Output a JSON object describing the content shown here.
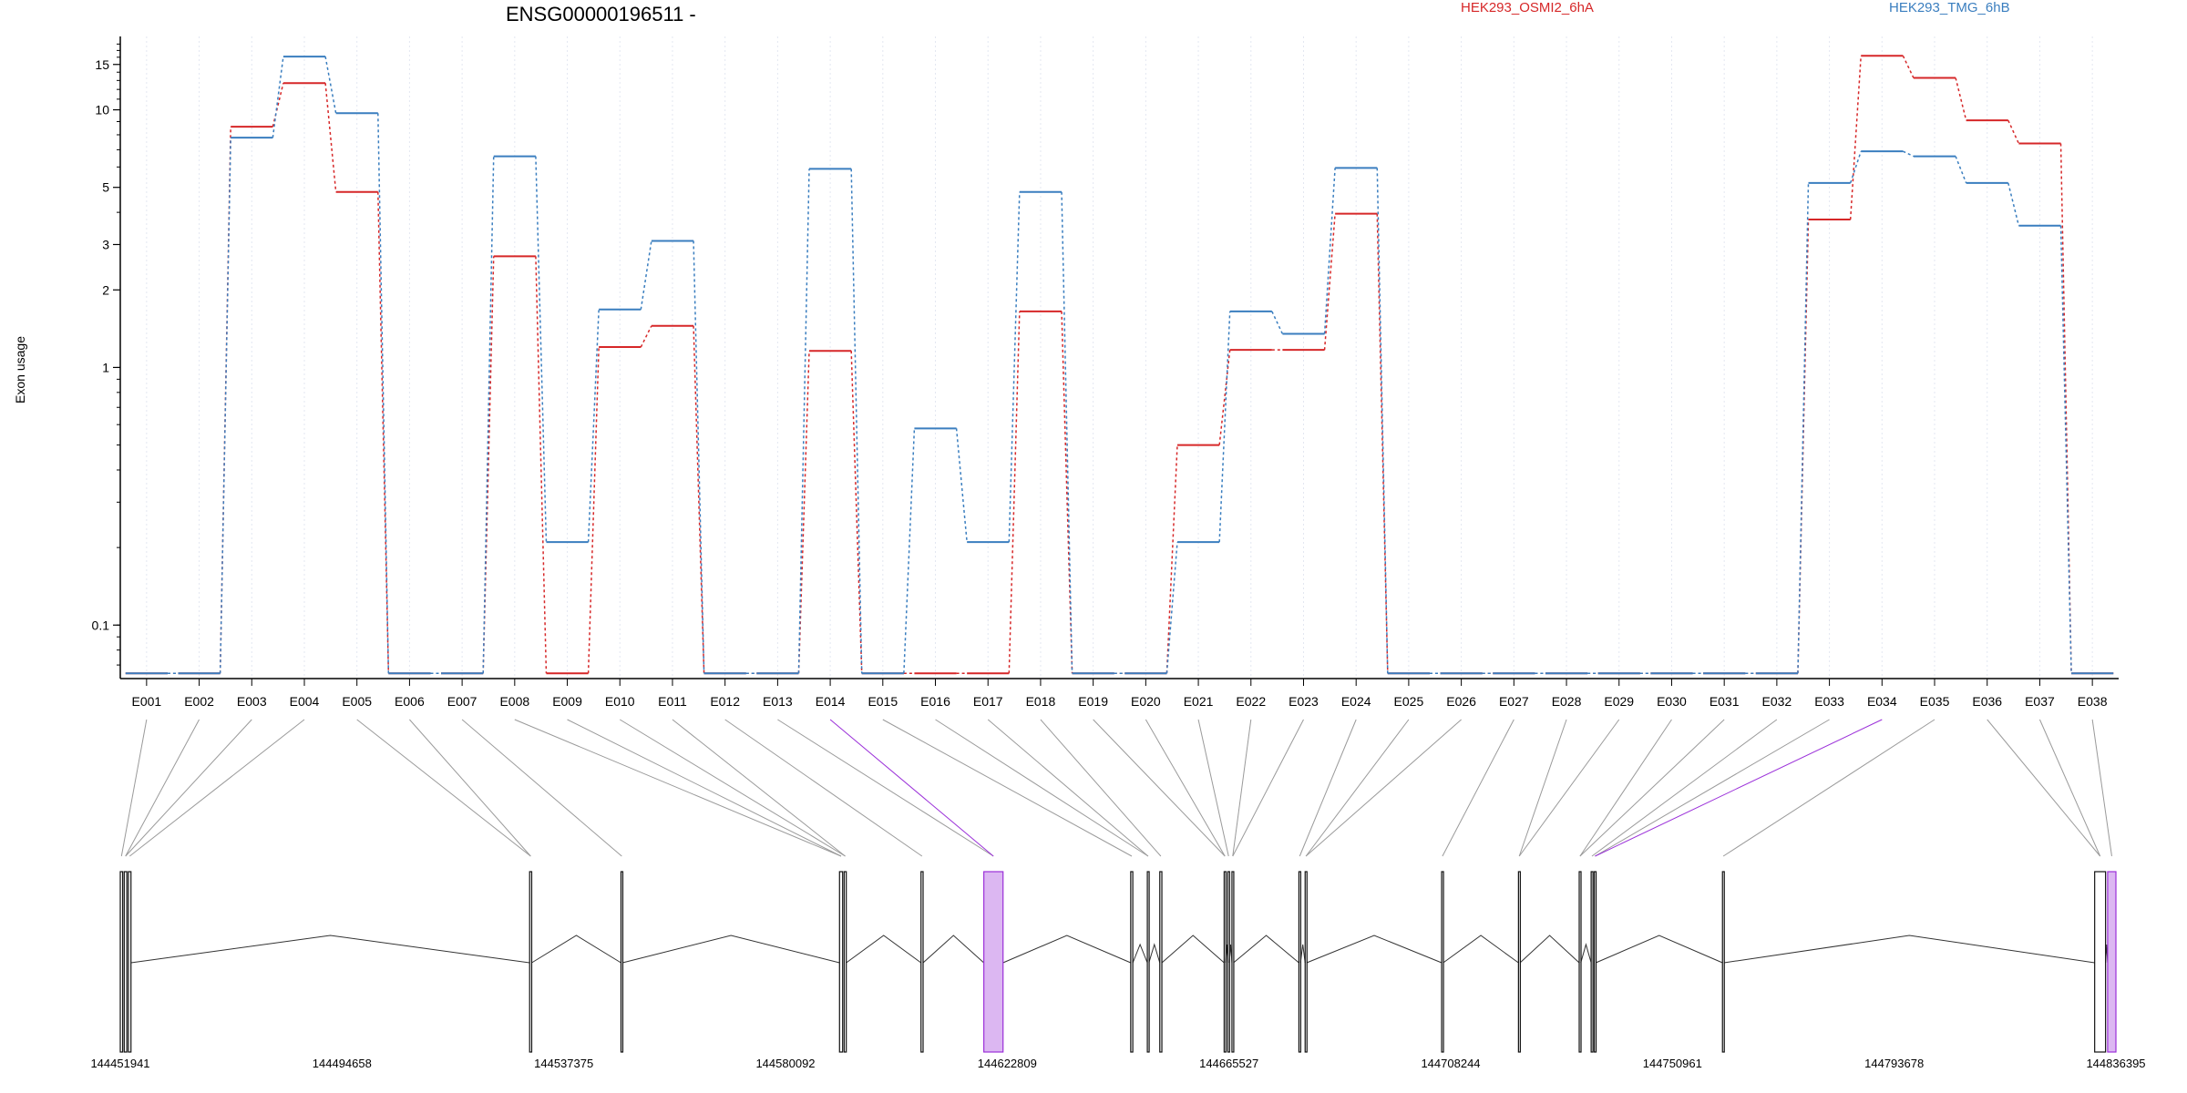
{
  "colors": {
    "series_red": "#d62728",
    "series_blue": "#3a7ebf",
    "highlight": "#9b30d9",
    "axis": "#000000",
    "grid": "#e3e7f1",
    "connector": "#9a9a9a"
  },
  "chart_data": {
    "type": "line",
    "title": "ENSG00000196511 -",
    "ylabel": "Exon usage",
    "xlabel": "",
    "y_scale": "log",
    "y_ticks": [
      0.1,
      1,
      2,
      3,
      5,
      10,
      15
    ],
    "y_tick_labels": [
      "0.1",
      "1",
      "2",
      "3",
      "5",
      "10",
      "15"
    ],
    "ylim": [
      0.062,
      18.5
    ],
    "grid": "vertical dotted",
    "legend_placement": "top",
    "categories": [
      "E001",
      "E002",
      "E003",
      "E004",
      "E005",
      "E006",
      "E007",
      "E008",
      "E009",
      "E010",
      "E011",
      "E012",
      "E013",
      "E014",
      "E015",
      "E016",
      "E017",
      "E018",
      "E019",
      "E020",
      "E021",
      "E022",
      "E023",
      "E024",
      "E025",
      "E026",
      "E027",
      "E028",
      "E029",
      "E030",
      "E031",
      "E032",
      "E033",
      "E034",
      "E035",
      "E036",
      "E037",
      "E038"
    ],
    "series": [
      {
        "name": "HEK293_OSMI2_6hA",
        "color": "#d62728",
        "values": [
          0.065,
          0.065,
          8.6,
          12.7,
          4.8,
          0.065,
          0.065,
          2.7,
          0.065,
          1.2,
          1.45,
          0.065,
          0.065,
          1.16,
          0.065,
          0.065,
          0.065,
          1.65,
          0.065,
          0.065,
          0.5,
          1.17,
          1.17,
          3.95,
          0.065,
          0.065,
          0.065,
          0.065,
          0.065,
          0.065,
          0.065,
          0.065,
          3.75,
          16.2,
          13.3,
          9.1,
          7.4,
          0.065
        ]
      },
      {
        "name": "HEK293_TMG_6hB",
        "color": "#3a7ebf",
        "values": [
          0.065,
          0.065,
          7.8,
          16.1,
          9.7,
          0.065,
          0.065,
          6.6,
          0.21,
          1.68,
          3.1,
          0.065,
          0.065,
          5.9,
          0.065,
          0.58,
          0.21,
          4.8,
          0.065,
          0.065,
          0.21,
          1.65,
          1.35,
          5.95,
          0.065,
          0.065,
          0.065,
          0.065,
          0.065,
          0.065,
          0.065,
          0.065,
          5.2,
          6.9,
          6.6,
          5.2,
          3.55,
          0.065
        ]
      }
    ],
    "highlight_exons": [
      "E014",
      "E034"
    ],
    "genome_axis": {
      "labels": [
        "144451941",
        "144494658",
        "144537375",
        "144580092",
        "144622809",
        "144665527",
        "144708244",
        "144750961",
        "144793678",
        "144836395"
      ],
      "range": [
        144451941,
        144836395
      ]
    },
    "gene_model": {
      "exons": [
        [
          144451941,
          144452400
        ],
        [
          144452700,
          144453200
        ],
        [
          144453500,
          144454000
        ],
        [
          144530800,
          144531200
        ],
        [
          144548400,
          144548700
        ],
        [
          144590500,
          144591100
        ],
        [
          144591400,
          144591800
        ],
        [
          144606200,
          144606600
        ],
        [
          144618300,
          144622000
        ],
        [
          144646600,
          144647000
        ],
        [
          144649800,
          144650100
        ],
        [
          144652200,
          144652600
        ],
        [
          144664600,
          144664900
        ],
        [
          144665300,
          144665600
        ],
        [
          144666100,
          144666400
        ],
        [
          144679000,
          144679300
        ],
        [
          144680200,
          144680500
        ],
        [
          144706500,
          144706800
        ],
        [
          144721300,
          144721600
        ],
        [
          144733000,
          144733300
        ],
        [
          144735300,
          144735600
        ],
        [
          144735900,
          144736200
        ],
        [
          144760600,
          144760900
        ],
        [
          144832300,
          144834400
        ],
        [
          144834800,
          144836395
        ]
      ],
      "highlight_ranges": [
        [
          144618300,
          144622000
        ],
        [
          144834800,
          144836395
        ]
      ]
    }
  }
}
